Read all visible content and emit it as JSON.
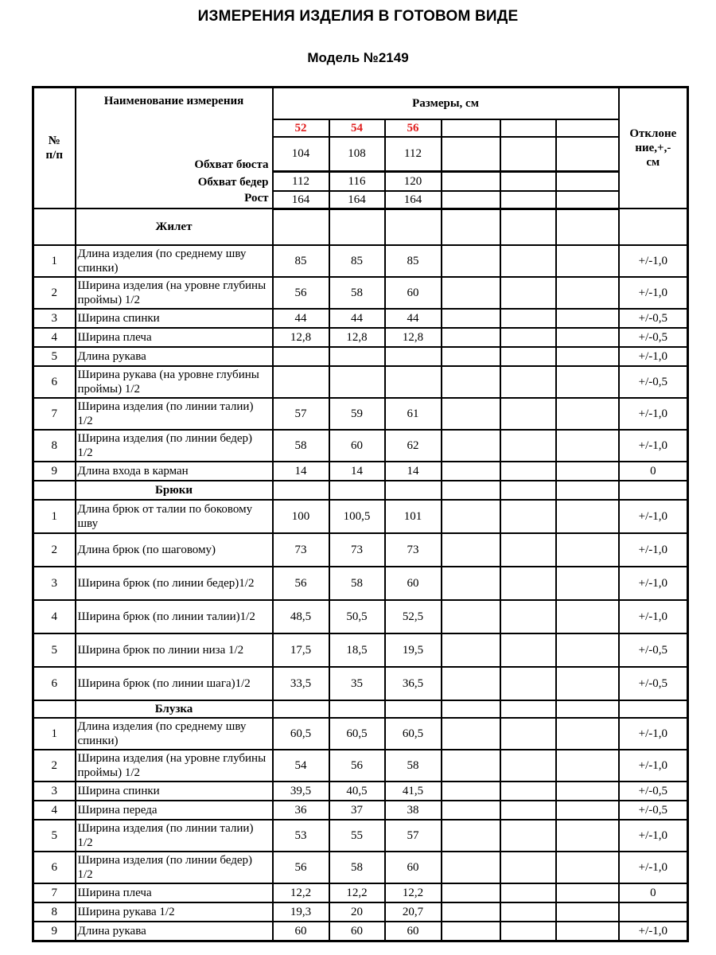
{
  "title": "ИЗМЕРЕНИЯ ИЗДЕЛИЯ В ГОТОВОМ ВИДЕ",
  "subtitle": "Модель №2149",
  "colors": {
    "size_highlight": "#e01f1f",
    "text": "#000000",
    "border": "#000000"
  },
  "table": {
    "corner_label": "№\nп/п",
    "name_header": "Наименование измерения",
    "sizes_header": "Размеры, см",
    "deviation_header": "Отклоне\nние,+,-\nсм",
    "size_labels": [
      "52",
      "54",
      "56",
      "",
      "",
      ""
    ],
    "base_measurements": [
      {
        "label": "Обхват бюста",
        "values": [
          "104",
          "108",
          "112"
        ]
      },
      {
        "label": "Обхват бедер",
        "values": [
          "112",
          "116",
          "120"
        ]
      },
      {
        "label": "Рост",
        "values": [
          "164",
          "164",
          "164"
        ]
      }
    ],
    "sections": [
      {
        "name": "Жилет",
        "rows": [
          {
            "num": "1",
            "label": "Длина изделия (по среднему шву спинки)",
            "values": [
              "85",
              "85",
              "85"
            ],
            "deviation": "+/-1,0"
          },
          {
            "num": "2",
            "label": "Ширина изделия (на уровне глубины проймы) 1/2",
            "values": [
              "56",
              "58",
              "60"
            ],
            "deviation": "+/-1,0"
          },
          {
            "num": "3",
            "label": "Ширина спинки",
            "values": [
              "44",
              "44",
              "44"
            ],
            "deviation": "+/-0,5"
          },
          {
            "num": "4",
            "label": "Ширина плеча",
            "values": [
              "12,8",
              "12,8",
              "12,8"
            ],
            "deviation": "+/-0,5"
          },
          {
            "num": "5",
            "label": "Длина рукава",
            "values": [],
            "deviation": "+/-1,0"
          },
          {
            "num": "6",
            "label": "Ширина рукава (на уровне глубины проймы) 1/2",
            "values": [],
            "deviation": "+/-0,5"
          },
          {
            "num": "7",
            "label": "Ширина изделия (по линии талии) 1/2",
            "values": [
              "57",
              "59",
              "61"
            ],
            "deviation": "+/-1,0"
          },
          {
            "num": "8",
            "label": "Ширина изделия (по линии бедер) 1/2",
            "values": [
              "58",
              "60",
              "62"
            ],
            "deviation": "+/-1,0"
          },
          {
            "num": "9",
            "label": "Длина входа в карман",
            "values": [
              "14",
              "14",
              "14"
            ],
            "deviation": "0"
          }
        ]
      },
      {
        "name": "Брюки",
        "rows": [
          {
            "num": "1",
            "label": "Длина брюк от талии по боковому шву",
            "values": [
              "100",
              "100,5",
              "101"
            ],
            "deviation": "+/-1,0"
          },
          {
            "num": "2",
            "label": "Длина брюк (по шаговому)",
            "values": [
              "73",
              "73",
              "73"
            ],
            "deviation": "+/-1,0"
          },
          {
            "num": "3",
            "label": "Ширина брюк (по линии бедер)1/2",
            "values": [
              "56",
              "58",
              "60"
            ],
            "deviation": "+/-1,0"
          },
          {
            "num": "4",
            "label": "Ширина брюк (по линии талии)1/2",
            "values": [
              "48,5",
              "50,5",
              "52,5"
            ],
            "deviation": "+/-1,0"
          },
          {
            "num": "5",
            "label": "Ширина брюк по линии низа 1/2",
            "values": [
              "17,5",
              "18,5",
              "19,5"
            ],
            "deviation": "+/-0,5"
          },
          {
            "num": "6",
            "label": "Ширина брюк (по линии шага)1/2",
            "values": [
              "33,5",
              "35",
              "36,5"
            ],
            "deviation": "+/-0,5"
          }
        ]
      },
      {
        "name": "Блузка",
        "rows": [
          {
            "num": "1",
            "label": "Длина изделия (по среднему шву спинки)",
            "values": [
              "60,5",
              "60,5",
              "60,5"
            ],
            "deviation": "+/-1,0"
          },
          {
            "num": "2",
            "label": "Ширина изделия (на уровне глубины проймы) 1/2",
            "values": [
              "54",
              "56",
              "58"
            ],
            "deviation": "+/-1,0"
          },
          {
            "num": "3",
            "label": "Ширина спинки",
            "values": [
              "39,5",
              "40,5",
              "41,5"
            ],
            "deviation": "+/-0,5"
          },
          {
            "num": "4",
            "label": "Ширина переда",
            "values": [
              "36",
              "37",
              "38"
            ],
            "deviation": "+/-0,5"
          },
          {
            "num": "5",
            "label": "Ширина изделия (по линии талии) 1/2",
            "values": [
              "53",
              "55",
              "57"
            ],
            "deviation": "+/-1,0"
          },
          {
            "num": "6",
            "label": "Ширина изделия (по линии бедер) 1/2",
            "values": [
              "56",
              "58",
              "60"
            ],
            "deviation": "+/-1,0"
          },
          {
            "num": "7",
            "label": "Ширина плеча",
            "values": [
              "12,2",
              "12,2",
              "12,2"
            ],
            "deviation": "0"
          },
          {
            "num": "8",
            "label": "Ширина рукава 1/2",
            "values": [
              "19,3",
              "20",
              "20,7"
            ],
            "deviation": ""
          },
          {
            "num": "9",
            "label": "Длина рукава",
            "values": [
              "60",
              "60",
              "60"
            ],
            "deviation": "+/-1,0"
          }
        ]
      }
    ]
  }
}
